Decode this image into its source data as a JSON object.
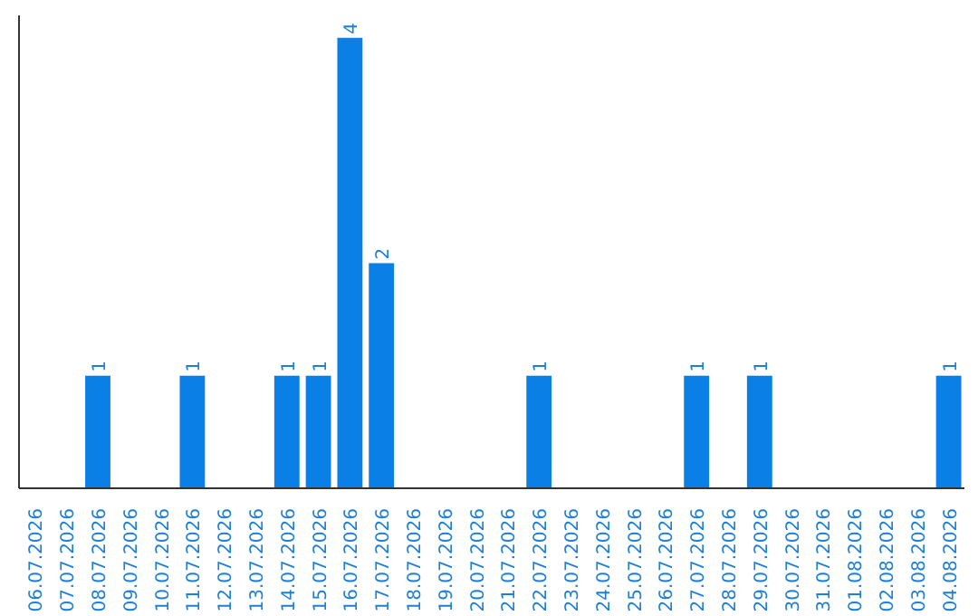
{
  "chart_data": {
    "type": "bar",
    "categories": [
      "06.07.2026",
      "07.07.2026",
      "08.07.2026",
      "09.07.2026",
      "10.07.2026",
      "11.07.2026",
      "12.07.2026",
      "13.07.2026",
      "14.07.2026",
      "15.07.2026",
      "16.07.2026",
      "17.07.2026",
      "18.07.2026",
      "19.07.2026",
      "20.07.2026",
      "21.07.2026",
      "22.07.2026",
      "23.07.2026",
      "24.07.2026",
      "25.07.2026",
      "26.07.2026",
      "27.07.2026",
      "28.07.2026",
      "29.07.2026",
      "30.07.2026",
      "31.07.2026",
      "01.08.2026",
      "02.08.2026",
      "03.08.2026",
      "04.08.2026"
    ],
    "values": [
      0,
      0,
      1,
      0,
      0,
      1,
      0,
      0,
      1,
      1,
      4,
      2,
      0,
      0,
      0,
      0,
      1,
      0,
      0,
      0,
      0,
      1,
      0,
      1,
      0,
      0,
      0,
      0,
      0,
      1
    ],
    "value_labels": [
      null,
      null,
      "1",
      null,
      null,
      "1",
      null,
      null,
      "1",
      "1",
      "4",
      "2",
      null,
      null,
      null,
      null,
      "1",
      null,
      null,
      null,
      null,
      "1",
      null,
      "1",
      null,
      null,
      null,
      null,
      null,
      "1"
    ],
    "color": "#0a7fe6",
    "tick_labels": "x",
    "grid": false
  }
}
